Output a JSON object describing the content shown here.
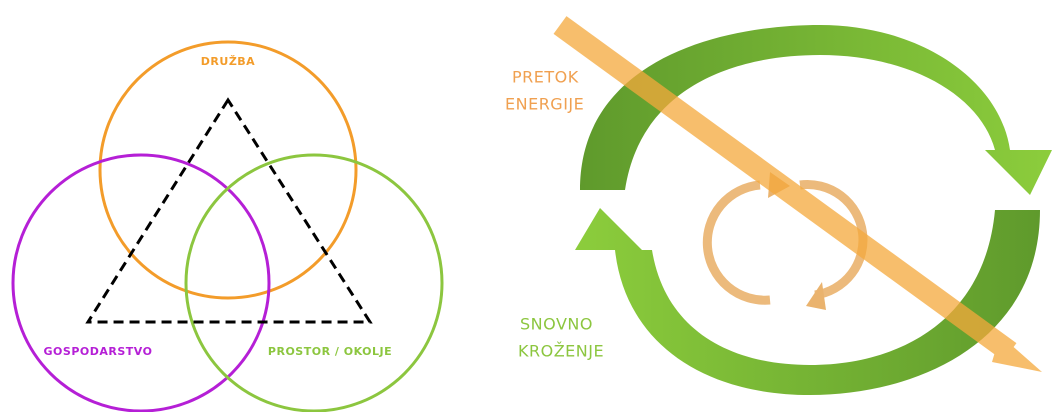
{
  "left": {
    "labels": [
      "DRUŽBA",
      "GOSPODARSTVO",
      "PROSTOR / OKOLJE"
    ]
  },
  "right": {
    "energy_flow": [
      "PRETOK",
      "ENERGIJE"
    ],
    "material_cycle": [
      "SNOVNO",
      "KROŽENJE"
    ]
  }
}
